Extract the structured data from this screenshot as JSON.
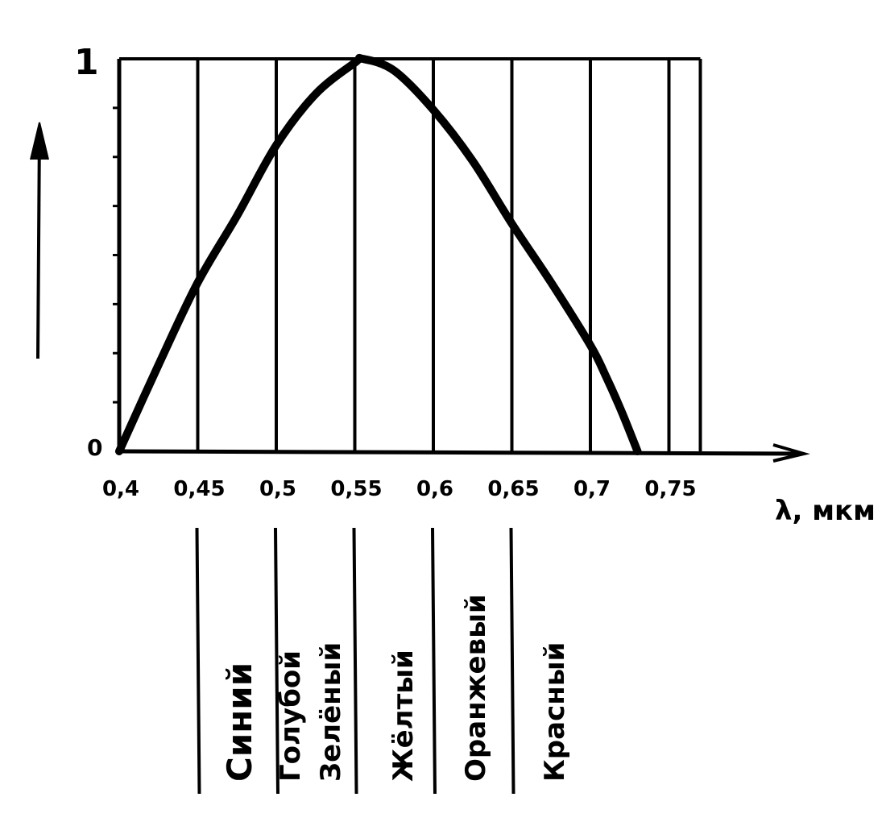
{
  "chart_data": {
    "type": "line",
    "title": "",
    "xlabel": "λ, мкм",
    "ylabel": "",
    "y_arrow": true,
    "xlim": [
      0.4,
      0.77
    ],
    "ylim": [
      0,
      1
    ],
    "y_ticks": [
      "0",
      "1"
    ],
    "x_ticks": [
      {
        "value": 0.4,
        "label": "0,4"
      },
      {
        "value": 0.45,
        "label": "0,45"
      },
      {
        "value": 0.5,
        "label": "0,5"
      },
      {
        "value": 0.55,
        "label": "0,55"
      },
      {
        "value": 0.6,
        "label": "0,6"
      },
      {
        "value": 0.65,
        "label": "0,65"
      },
      {
        "value": 0.7,
        "label": "0,7"
      },
      {
        "value": 0.75,
        "label": "0,75"
      }
    ],
    "series": [
      {
        "x": [
          0.4,
          0.425,
          0.45,
          0.475,
          0.5,
          0.525,
          0.55,
          0.555,
          0.575,
          0.6,
          0.625,
          0.65,
          0.675,
          0.7,
          0.71,
          0.72,
          0.73
        ],
        "y": [
          0.0,
          0.22,
          0.43,
          0.6,
          0.78,
          0.91,
          0.99,
          1.0,
          0.97,
          0.87,
          0.74,
          0.58,
          0.43,
          0.27,
          0.19,
          0.1,
          0.0
        ]
      }
    ],
    "color_bands": [
      {
        "label": "Синий",
        "boundary_left": 0.45
      },
      {
        "label": "Голубой",
        "boundary_left": 0.5
      },
      {
        "label": "Зелёный",
        "boundary_left": 0.55
      },
      {
        "label": "Жёлтый",
        "boundary_left": 0.6
      },
      {
        "label": "Оранжевый",
        "boundary_left": 0.65
      },
      {
        "label": "Красный",
        "boundary_left": 0.7
      }
    ],
    "line_color": "#000000",
    "grid": "vertical"
  }
}
